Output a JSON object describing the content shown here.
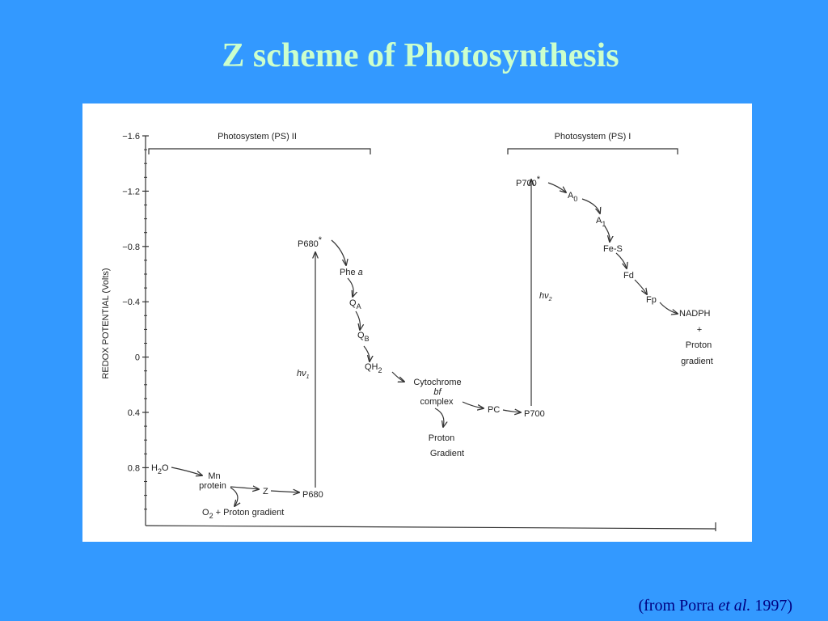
{
  "title": "Z scheme of Photosynthesis",
  "citation": {
    "before": "(from Porra ",
    "italic": "et al.",
    "after": " 1997)"
  },
  "figure": {
    "y_axis_label": "REDOX POTENTIAL  (Volts)",
    "y_ticks": [
      "−1.6",
      "−1.2",
      "−0.8",
      "−0.4",
      "0",
      "0.4",
      "0.8"
    ],
    "groups": [
      "Photosystem (PS) II",
      "Photosystem (PS) I"
    ],
    "nodes": {
      "h2o": [
        "H",
        "2",
        "O"
      ],
      "mn_protein": [
        "Mn",
        "protein"
      ],
      "z": "Z",
      "p680": "P680",
      "o2": [
        "O",
        "2",
        " + Proton gradient"
      ],
      "hv1": [
        "hν",
        "1"
      ],
      "p680_star": [
        "P680",
        "*"
      ],
      "phe_a": [
        "Phe ",
        "a"
      ],
      "qa": [
        "Q",
        "A"
      ],
      "qb": [
        "Q",
        "B"
      ],
      "qh2": [
        "QH",
        "2"
      ],
      "cytochrome": [
        "Cytochrome",
        "bf",
        "complex"
      ],
      "proton_gradient": [
        "Proton",
        "Gradient"
      ],
      "pc": "PC",
      "p700": "P700",
      "hv2": [
        "hν",
        "2"
      ],
      "p700_star": [
        "P700",
        "*"
      ],
      "a0": [
        "A",
        "0"
      ],
      "a1": [
        "A",
        "1"
      ],
      "fes": "Fe-S",
      "fd": "Fd",
      "fp": "Fp",
      "nadph": [
        "NADPH",
        "+",
        "Proton",
        "gradient"
      ]
    }
  }
}
